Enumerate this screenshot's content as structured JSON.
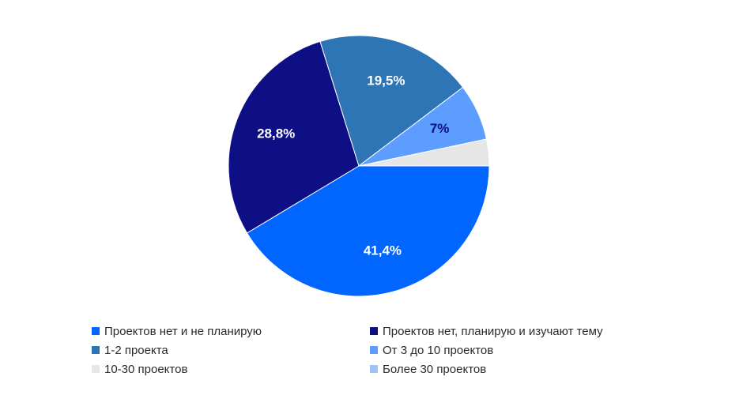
{
  "chart_data": {
    "type": "pie",
    "title": "",
    "legend_position": "bottom",
    "slices": [
      {
        "name": "Проектов нет и не планирую",
        "value": 41.4,
        "label": "41,4%",
        "color": "#0066ff",
        "label_color": "#ffffff"
      },
      {
        "name": "Проектов нет, планирую и изучают тему",
        "value": 28.8,
        "label": "28,8%",
        "color": "#0e0e85",
        "label_color": "#ffffff"
      },
      {
        "name": "1-2 проекта",
        "value": 19.5,
        "label": "19,5%",
        "color": "#2e75b6",
        "label_color": "#ffffff"
      },
      {
        "name": "От 3 до 10 проектов",
        "value": 7,
        "label": "7%",
        "color": "#5c9dff",
        "label_color": "#0e0e85"
      },
      {
        "name": "10-30 проектов",
        "value": 3.3,
        "label": "",
        "color": "#e6e6e6",
        "label_color": "#2b2b2b"
      },
      {
        "name": "Более 30 проектов",
        "value": 0,
        "label": "",
        "color": "#9dc3f7",
        "label_color": "#2b2b2b"
      }
    ],
    "legend_order": [
      0,
      1,
      2,
      3,
      4,
      5
    ]
  }
}
